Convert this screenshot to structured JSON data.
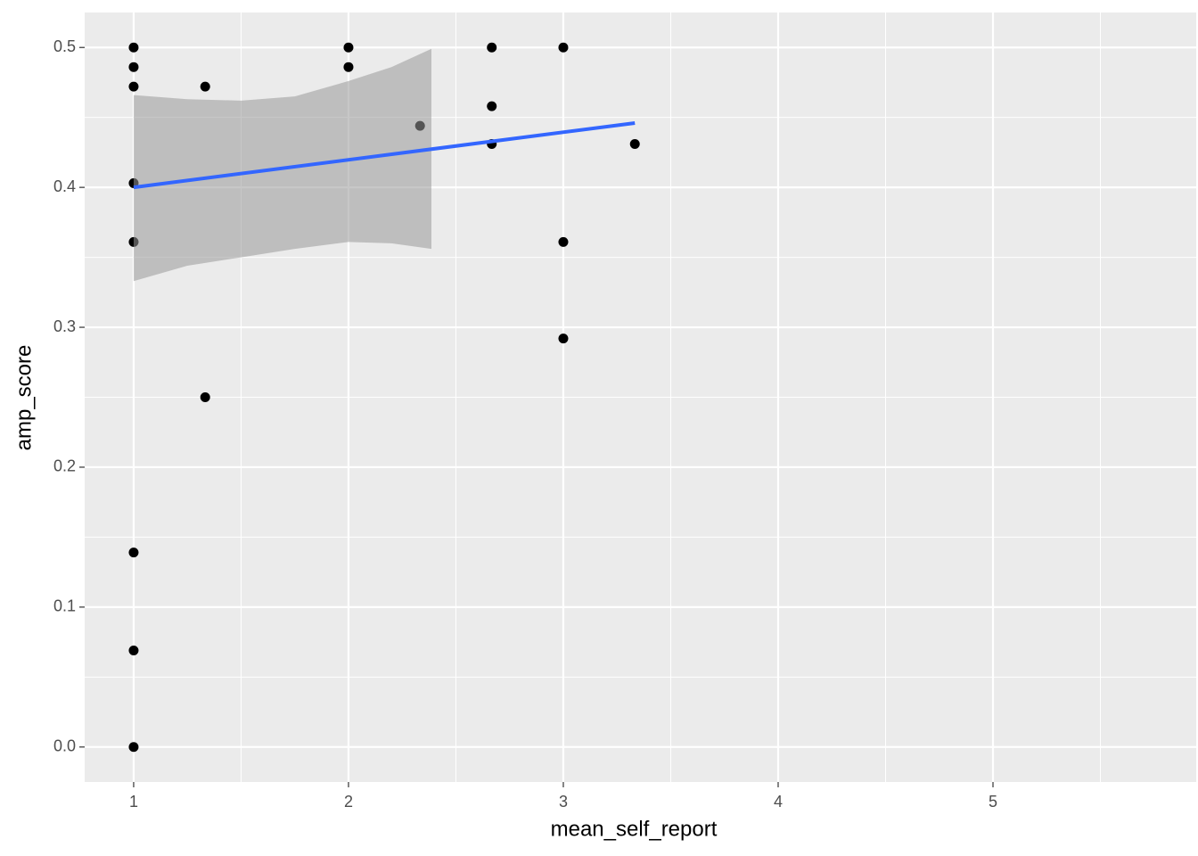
{
  "chart_data": {
    "type": "scatter",
    "x_label": "mean_self_report",
    "y_label": "amp_score",
    "x": [
      1,
      1,
      1,
      1,
      1,
      1,
      1,
      1,
      1.333,
      1.333,
      2,
      2,
      2.333,
      2.667,
      2.667,
      2.667,
      3,
      3,
      3,
      3.333
    ],
    "values": [
      0.5,
      0.486,
      0.472,
      0.403,
      0.361,
      0.139,
      0.069,
      0,
      0.472,
      0.25,
      0.5,
      0.486,
      0.444,
      0.5,
      0.458,
      0.431,
      0.5,
      0.361,
      0.292,
      0.431
    ],
    "color": "#000000",
    "fit": {
      "x": [
        1,
        3.333
      ],
      "values": [
        0.4,
        0.446
      ],
      "color": "#3366ff"
    },
    "band": {
      "x": [
        1,
        1.25,
        1.5,
        1.75,
        2,
        2.2,
        2.386
      ],
      "upper": [
        0.466,
        0.463,
        0.462,
        0.465,
        0.476,
        0.486,
        0.499
      ],
      "lower": [
        0.333,
        0.344,
        0.35,
        0.356,
        0.361,
        0.36,
        0.356
      ],
      "color": "#999999"
    },
    "xlim": [
      0.772,
      5.946
    ],
    "ylim": [
      -0.025,
      0.525
    ],
    "xticks": [
      1,
      2,
      3,
      4,
      5
    ],
    "yticks": [
      {
        "value": 0,
        "label": "0.0"
      },
      0.1,
      0.2,
      0.3,
      0.4,
      0.5
    ],
    "xminor": [
      1.5,
      2.5,
      3.5,
      4.5,
      5.5
    ],
    "yminor": [
      0.05,
      0.15,
      0.25,
      0.35,
      0.45
    ],
    "grid": true
  }
}
